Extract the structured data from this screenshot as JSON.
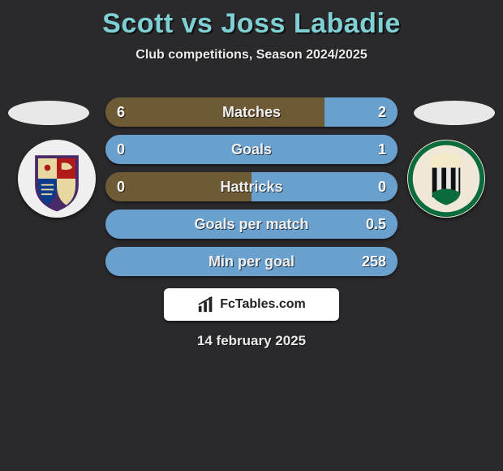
{
  "header": {
    "title": "Scott vs Joss Labadie",
    "subtitle": "Club competitions, Season 2024/2025"
  },
  "players": {
    "left_avatar_color": "#e8e8e8",
    "right_avatar_color": "#e8e8e8",
    "left_crest": {
      "outer": "#f0efef",
      "band": "#4a2a66",
      "q1": "#e7d7a0",
      "q2": "#b01a1a",
      "q3": "#0b3b8a",
      "q4": "#e7d7a0"
    },
    "right_crest": {
      "outer": "#efe7d8",
      "ring": "#0a6b3c",
      "inner_top": "#f4e9c8",
      "stripe_dark": "#111111",
      "stripe_light": "#e6e6e6",
      "hill": "#0a6b3c"
    }
  },
  "bars": [
    {
      "label": "Matches",
      "left_val": "6",
      "right_val": "2",
      "left_pct": 75,
      "right_pct": 25
    },
    {
      "label": "Goals",
      "left_val": "0",
      "right_val": "1",
      "left_pct": 0,
      "right_pct": 100
    },
    {
      "label": "Hattricks",
      "left_val": "0",
      "right_val": "0",
      "left_pct": 50,
      "right_pct": 50
    },
    {
      "label": "Goals per match",
      "left_val": "",
      "right_val": "0.5",
      "left_pct": 0,
      "right_pct": 100
    },
    {
      "label": "Min per goal",
      "left_val": "",
      "right_val": "258",
      "left_pct": 0,
      "right_pct": 100
    }
  ],
  "colors": {
    "left_bar": "#6f5a36",
    "right_bar": "#6aa0ce",
    "neutral_bar": "#888888"
  },
  "footer": {
    "logo_text": "FcTables.com",
    "date": "14 february 2025"
  }
}
